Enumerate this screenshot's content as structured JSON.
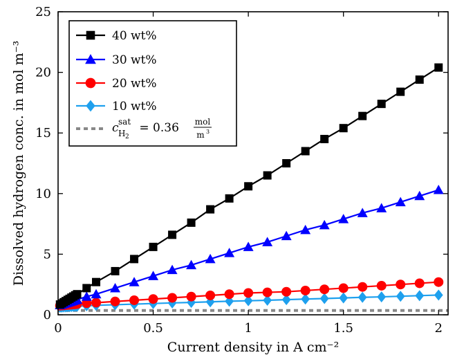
{
  "chart_data": {
    "type": "line",
    "xlabel": "Current density in A cm⁻²",
    "ylabel": "Dissolved hydrogen conc. in mol m⁻³",
    "xlim": [
      0,
      2.05
    ],
    "ylim": [
      0,
      25
    ],
    "xticks": [
      0,
      0.5,
      1,
      1.5,
      2
    ],
    "yticks": [
      0,
      5,
      10,
      15,
      20,
      25
    ],
    "grid": false,
    "legend_position": "top-left",
    "series": [
      {
        "name": "40 wt%",
        "color": "#000000",
        "marker": "square",
        "x": [
          0.01,
          0.02,
          0.03,
          0.04,
          0.05,
          0.06,
          0.07,
          0.08,
          0.09,
          0.1,
          0.15,
          0.2,
          0.3,
          0.4,
          0.5,
          0.6,
          0.7,
          0.8,
          0.9,
          1.0,
          1.1,
          1.2,
          1.3,
          1.4,
          1.5,
          1.6,
          1.7,
          1.8,
          1.9,
          2.0
        ],
        "values": [
          0.85,
          0.94,
          1.04,
          1.13,
          1.23,
          1.32,
          1.42,
          1.51,
          1.61,
          1.7,
          2.2,
          2.7,
          3.6,
          4.6,
          5.6,
          6.6,
          7.6,
          8.7,
          9.6,
          10.6,
          11.5,
          12.5,
          13.5,
          14.5,
          15.4,
          16.4,
          17.4,
          18.4,
          19.4,
          20.4
        ]
      },
      {
        "name": "30 wt%",
        "color": "#0000ff",
        "marker": "triangle",
        "x": [
          0.01,
          0.02,
          0.03,
          0.04,
          0.05,
          0.06,
          0.07,
          0.08,
          0.09,
          0.1,
          0.15,
          0.2,
          0.3,
          0.4,
          0.5,
          0.6,
          0.7,
          0.8,
          0.9,
          1.0,
          1.1,
          1.2,
          1.3,
          1.4,
          1.5,
          1.6,
          1.7,
          1.8,
          1.9,
          2.0
        ],
        "values": [
          0.8,
          0.85,
          0.9,
          0.95,
          1.0,
          1.05,
          1.1,
          1.15,
          1.2,
          1.25,
          1.5,
          1.7,
          2.2,
          2.7,
          3.2,
          3.7,
          4.1,
          4.6,
          5.1,
          5.6,
          6.0,
          6.5,
          7.0,
          7.4,
          7.9,
          8.4,
          8.8,
          9.3,
          9.8,
          10.3
        ]
      },
      {
        "name": "20 wt%",
        "color": "#ff0000",
        "marker": "circle",
        "x": [
          0.01,
          0.02,
          0.03,
          0.04,
          0.05,
          0.06,
          0.07,
          0.08,
          0.09,
          0.1,
          0.15,
          0.2,
          0.3,
          0.4,
          0.5,
          0.6,
          0.7,
          0.8,
          0.9,
          1.0,
          1.1,
          1.2,
          1.3,
          1.4,
          1.5,
          1.6,
          1.7,
          1.8,
          1.9,
          2.0
        ],
        "values": [
          0.75,
          0.77,
          0.78,
          0.8,
          0.81,
          0.83,
          0.84,
          0.86,
          0.87,
          0.89,
          0.96,
          1.0,
          1.1,
          1.2,
          1.3,
          1.4,
          1.5,
          1.6,
          1.7,
          1.8,
          1.85,
          1.9,
          2.0,
          2.1,
          2.2,
          2.3,
          2.4,
          2.5,
          2.6,
          2.7
        ]
      },
      {
        "name": "10 wt%",
        "color": "#1ea0ee",
        "marker": "diamond",
        "x": [
          0.01,
          0.02,
          0.03,
          0.04,
          0.05,
          0.06,
          0.07,
          0.08,
          0.09,
          0.1,
          0.15,
          0.2,
          0.3,
          0.4,
          0.5,
          0.6,
          0.7,
          0.8,
          0.9,
          1.0,
          1.1,
          1.2,
          1.3,
          1.4,
          1.5,
          1.6,
          1.7,
          1.8,
          1.9,
          2.0
        ],
        "values": [
          0.62,
          0.63,
          0.64,
          0.65,
          0.66,
          0.67,
          0.68,
          0.69,
          0.69,
          0.7,
          0.74,
          0.78,
          0.83,
          0.88,
          0.93,
          0.98,
          1.02,
          1.07,
          1.12,
          1.16,
          1.2,
          1.25,
          1.3,
          1.34,
          1.39,
          1.44,
          1.48,
          1.53,
          1.58,
          1.63
        ]
      },
      {
        "name": "c_H2^sat = 0.36 mol/m3",
        "color": "#888888",
        "dashed": true,
        "x": [
          0,
          2.05
        ],
        "values": [
          0.36,
          0.36
        ]
      }
    ]
  },
  "legend": {
    "items": [
      "40 wt%",
      "30 wt%",
      "20 wt%",
      "10 wt%"
    ],
    "sat_symbol": "c",
    "sat_sup": "sat",
    "sat_sub": "H",
    "sat_sub2": "2",
    "sat_eq": " = 0.36 ",
    "sat_num": "mol",
    "sat_den": "m",
    "sat_den_sup": "3"
  }
}
